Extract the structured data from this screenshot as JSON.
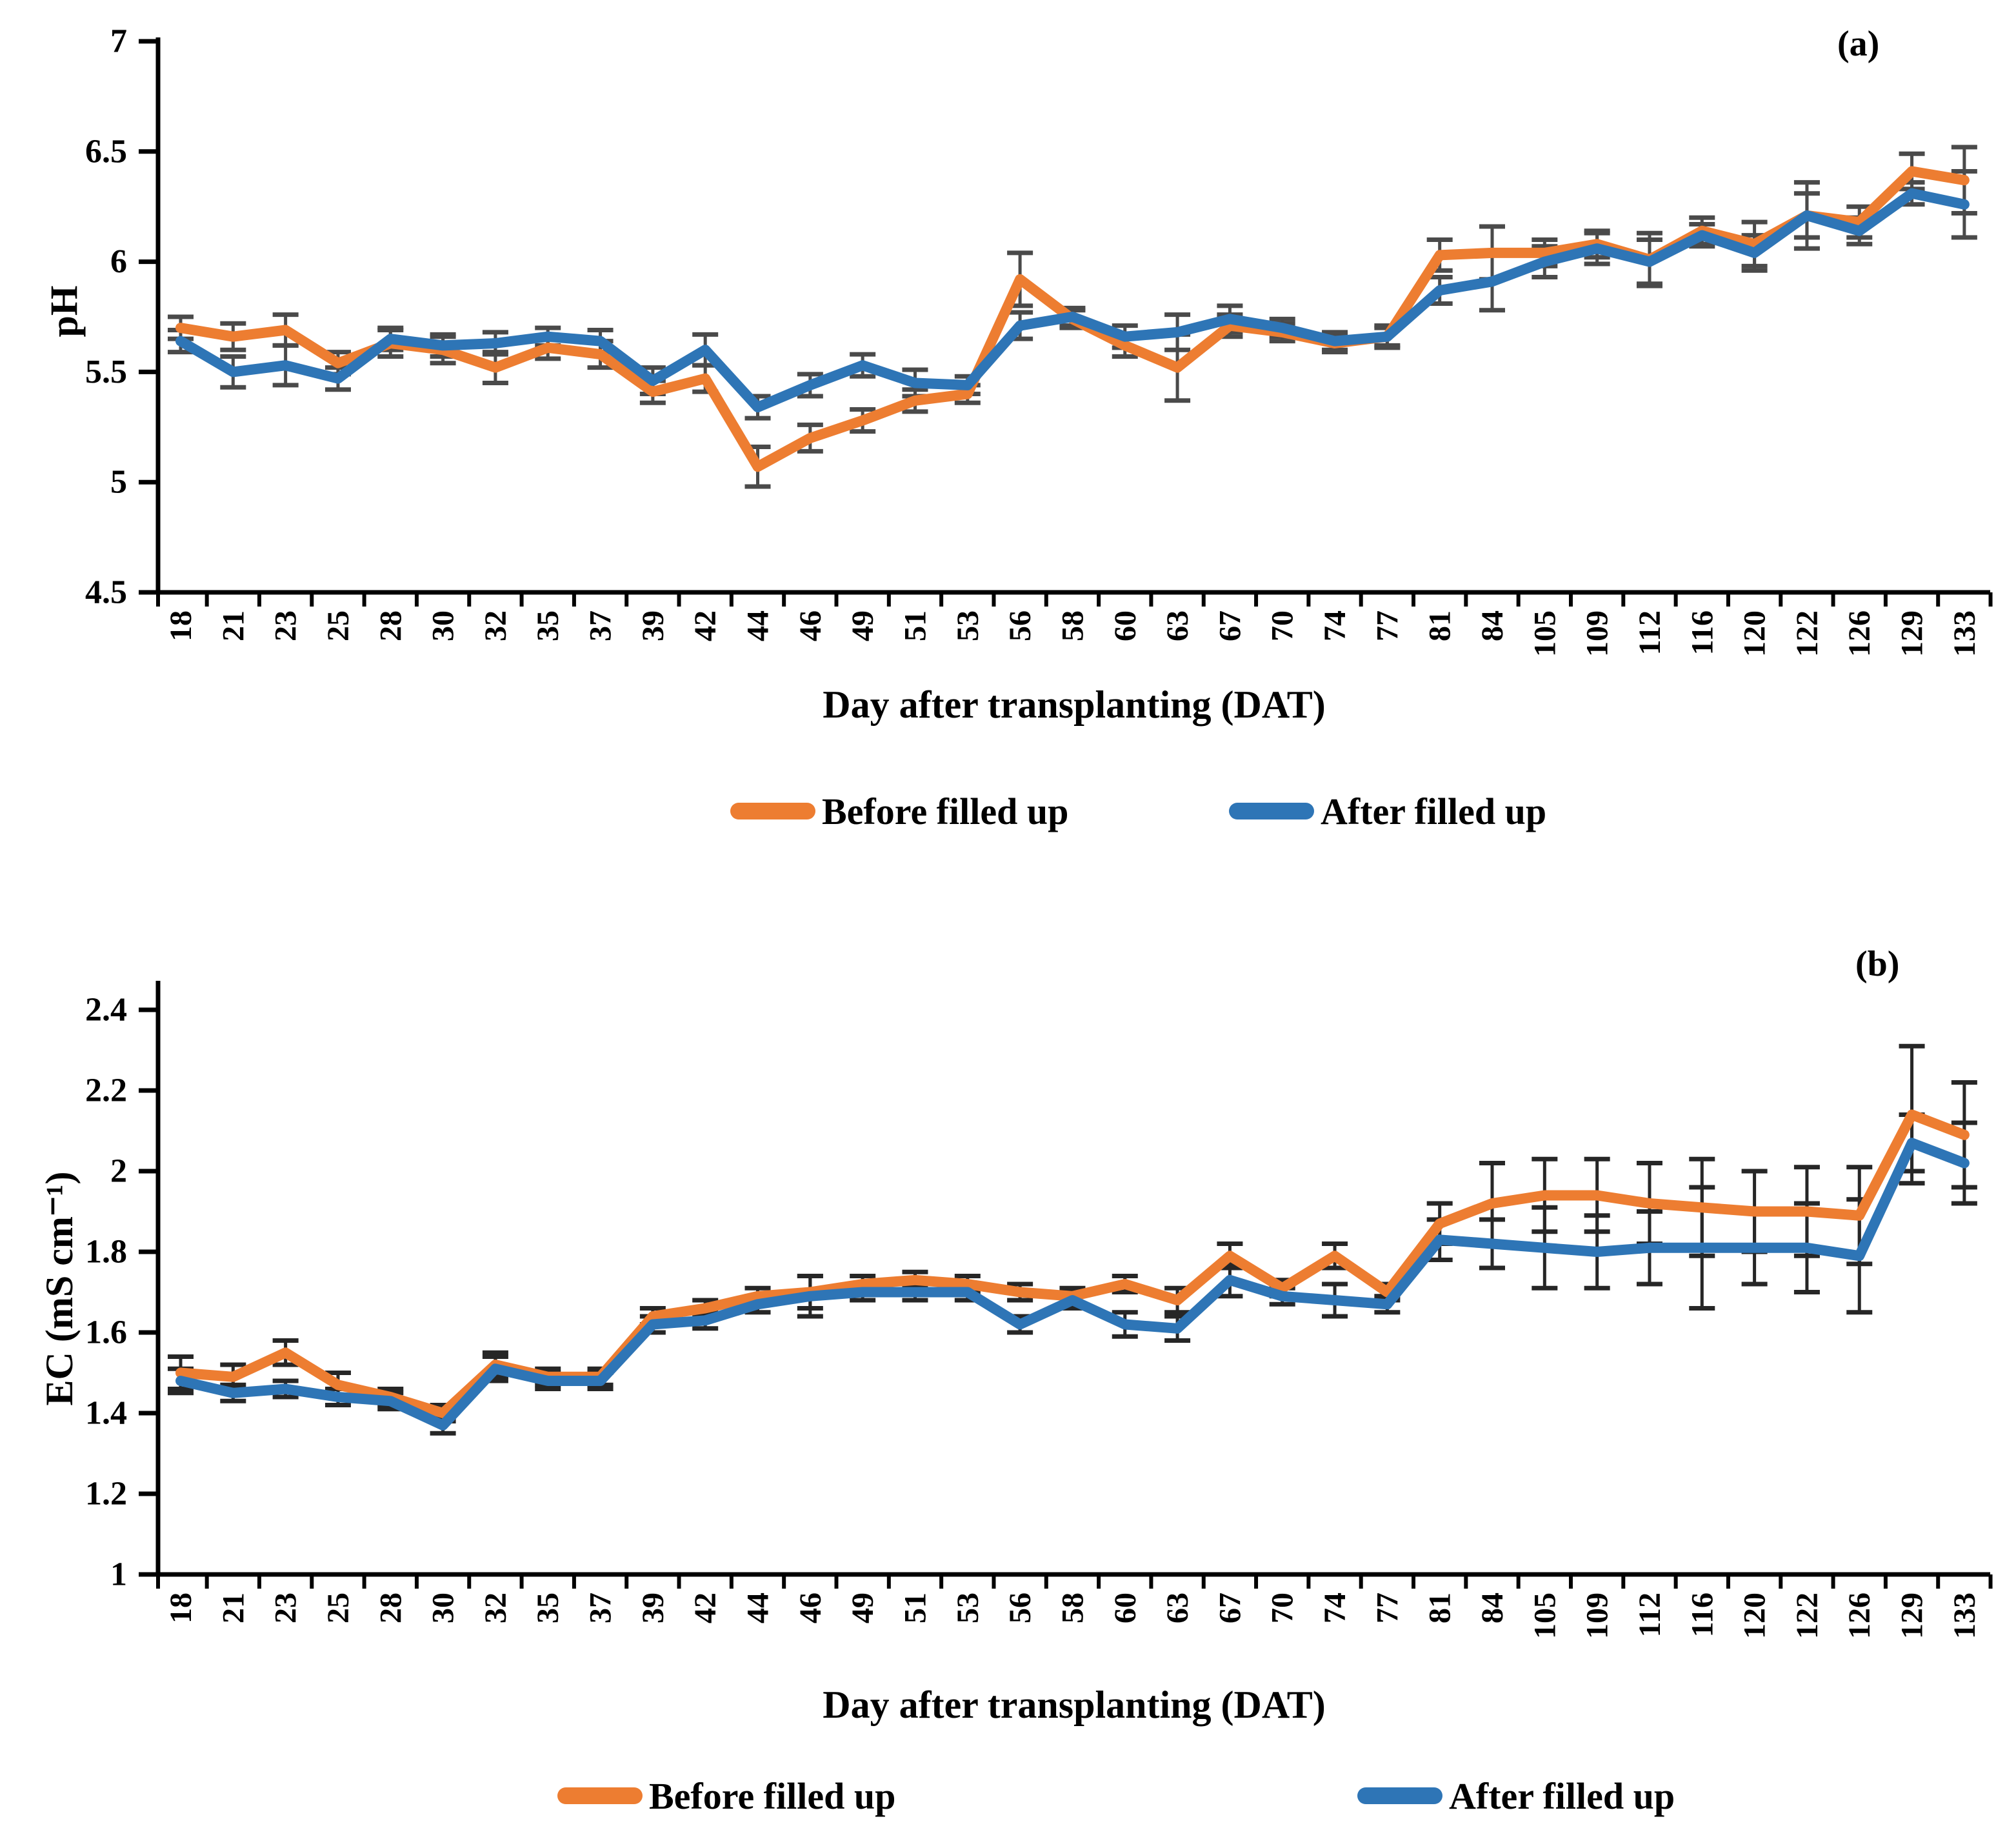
{
  "figure": {
    "background": "#ffffff",
    "panel_count": 2
  },
  "colors": {
    "before_series": "#ED7D31",
    "after_series": "#2E75B6",
    "axis": "#000000",
    "error_bar_top": "#4A4A4A",
    "error_bar_bottom": "#262626"
  },
  "chart_data": [
    {
      "id": "ph",
      "type": "line",
      "panel_label": "(a)",
      "title": "",
      "xlabel": "Day after transplanting (DAT)",
      "ylabel": "pH",
      "ylim": [
        4.5,
        7
      ],
      "ytick_labels": [
        "7",
        "6.5",
        "6",
        "5.5",
        "5",
        "4.5"
      ],
      "ytick_values": [
        7,
        6.5,
        6,
        5.5,
        5,
        4.5
      ],
      "grid": false,
      "legend_position": "bottom",
      "error_color": "#4A4A4A",
      "categories": [
        "18",
        "21",
        "23",
        "25",
        "28",
        "30",
        "32",
        "35",
        "37",
        "39",
        "42",
        "44",
        "46",
        "49",
        "51",
        "53",
        "56",
        "58",
        "60",
        "63",
        "67",
        "70",
        "74",
        "77",
        "81",
        "84",
        "105",
        "109",
        "112",
        "116",
        "120",
        "122",
        "126",
        "129",
        "133"
      ],
      "series": [
        {
          "name": "Before filled up",
          "color": "#ED7D31",
          "values": [
            5.7,
            5.66,
            5.69,
            5.54,
            5.63,
            5.6,
            5.52,
            5.61,
            5.58,
            5.41,
            5.47,
            5.07,
            5.2,
            5.28,
            5.37,
            5.4,
            5.92,
            5.74,
            5.62,
            5.52,
            5.71,
            5.68,
            5.63,
            5.66,
            6.03,
            6.04,
            6.04,
            6.08,
            6.01,
            6.14,
            6.08,
            6.21,
            6.18,
            6.41,
            6.37
          ],
          "errors": [
            0.05,
            0.06,
            0.07,
            0.05,
            0.06,
            0.06,
            0.07,
            0.05,
            0.06,
            0.05,
            0.06,
            0.09,
            0.06,
            0.05,
            0.05,
            0.04,
            0.12,
            0.04,
            0.05,
            0.15,
            0.05,
            0.04,
            0.04,
            0.05,
            0.07,
            0.12,
            0.06,
            0.06,
            0.12,
            0.06,
            0.1,
            0.15,
            0.07,
            0.08,
            0.15
          ]
        },
        {
          "name": "After filled up",
          "color": "#2E75B6",
          "values": [
            5.64,
            5.5,
            5.53,
            5.47,
            5.65,
            5.62,
            5.63,
            5.66,
            5.64,
            5.46,
            5.6,
            5.34,
            5.44,
            5.53,
            5.45,
            5.44,
            5.71,
            5.75,
            5.66,
            5.68,
            5.74,
            5.7,
            5.64,
            5.66,
            5.87,
            5.91,
            6.0,
            6.06,
            6.0,
            6.12,
            6.04,
            6.21,
            6.14,
            6.31,
            6.26
          ],
          "errors": [
            0.05,
            0.07,
            0.09,
            0.05,
            0.05,
            0.05,
            0.05,
            0.04,
            0.05,
            0.06,
            0.07,
            0.05,
            0.05,
            0.05,
            0.06,
            0.04,
            0.06,
            0.04,
            0.05,
            0.08,
            0.06,
            0.04,
            0.04,
            0.04,
            0.06,
            0.13,
            0.07,
            0.07,
            0.1,
            0.05,
            0.08,
            0.1,
            0.06,
            0.05,
            0.15
          ]
        }
      ]
    },
    {
      "id": "ec",
      "type": "line",
      "panel_label": "(b)",
      "title": "",
      "xlabel": "Day after transplanting (DAT)",
      "ylabel": "EC (mS cm⁻¹)",
      "ylim": [
        1,
        2.4
      ],
      "ytick_labels": [
        "2.4",
        "2.2",
        "2",
        "1.8",
        "1.6",
        "1.4",
        "1.2",
        "1"
      ],
      "ytick_values": [
        2.4,
        2.2,
        2,
        1.8,
        1.6,
        1.4,
        1.2,
        1
      ],
      "grid": false,
      "legend_position": "bottom",
      "error_color": "#262626",
      "categories": [
        "18",
        "21",
        "23",
        "25",
        "28",
        "30",
        "32",
        "35",
        "37",
        "39",
        "42",
        "44",
        "46",
        "49",
        "51",
        "53",
        "56",
        "58",
        "60",
        "63",
        "67",
        "70",
        "74",
        "77",
        "81",
        "84",
        "105",
        "109",
        "112",
        "116",
        "120",
        "122",
        "126",
        "129",
        "133"
      ],
      "series": [
        {
          "name": "Before filled up",
          "color": "#ED7D31",
          "values": [
            1.5,
            1.49,
            1.55,
            1.47,
            1.44,
            1.4,
            1.52,
            1.49,
            1.49,
            1.64,
            1.66,
            1.69,
            1.7,
            1.72,
            1.73,
            1.72,
            1.7,
            1.69,
            1.72,
            1.68,
            1.79,
            1.71,
            1.79,
            1.7,
            1.87,
            1.92,
            1.94,
            1.94,
            1.92,
            1.91,
            1.9,
            1.9,
            1.89,
            2.14,
            2.09
          ],
          "errors": [
            0.04,
            0.03,
            0.03,
            0.03,
            0.02,
            0.02,
            0.03,
            0.02,
            0.02,
            0.02,
            0.02,
            0.02,
            0.04,
            0.02,
            0.02,
            0.02,
            0.02,
            0.02,
            0.02,
            0.03,
            0.03,
            0.02,
            0.03,
            0.02,
            0.05,
            0.1,
            0.09,
            0.09,
            0.1,
            0.12,
            0.1,
            0.11,
            0.12,
            0.17,
            0.13
          ]
        },
        {
          "name": "After filled up",
          "color": "#2E75B6",
          "values": [
            1.48,
            1.45,
            1.46,
            1.44,
            1.43,
            1.37,
            1.51,
            1.48,
            1.48,
            1.62,
            1.63,
            1.67,
            1.69,
            1.7,
            1.7,
            1.7,
            1.62,
            1.68,
            1.62,
            1.61,
            1.73,
            1.69,
            1.68,
            1.67,
            1.83,
            1.82,
            1.81,
            1.8,
            1.81,
            1.81,
            1.81,
            1.81,
            1.79,
            2.07,
            2.02
          ],
          "errors": [
            0.03,
            0.02,
            0.02,
            0.02,
            0.02,
            0.02,
            0.03,
            0.02,
            0.02,
            0.02,
            0.02,
            0.02,
            0.05,
            0.02,
            0.02,
            0.02,
            0.02,
            0.02,
            0.03,
            0.03,
            0.04,
            0.02,
            0.04,
            0.02,
            0.05,
            0.06,
            0.1,
            0.09,
            0.09,
            0.15,
            0.09,
            0.11,
            0.14,
            0.07,
            0.1
          ]
        }
      ]
    }
  ]
}
